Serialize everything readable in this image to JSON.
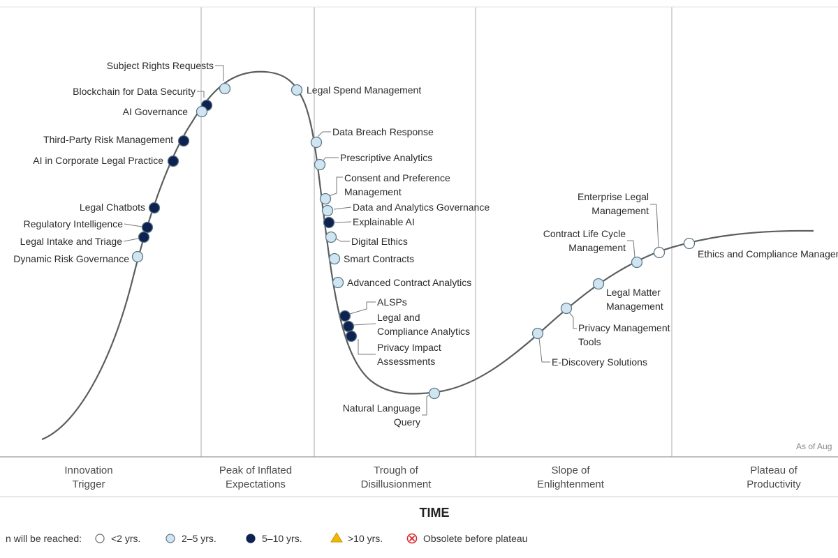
{
  "phases": [
    {
      "line1": "Innovation",
      "line2": "Trigger"
    },
    {
      "line1": "Peak of Inflated",
      "line2": "Expectations"
    },
    {
      "line1": "Trough of",
      "line2": "Disillusionment"
    },
    {
      "line1": "Slope of",
      "line2": "Enlightenment"
    },
    {
      "line1": "Plateau of",
      "line2": "Productivity"
    }
  ],
  "x_axis_title": "TIME",
  "as_of": "As of Aug",
  "legend": {
    "prefix": "n will be reached:",
    "items": [
      {
        "label": "<2 yrs.",
        "symbol": "hollow-circle"
      },
      {
        "label": "2–5 yrs.",
        "symbol": "light-blue-circle"
      },
      {
        "label": "5–10 yrs.",
        "symbol": "navy-circle"
      },
      {
        "label": ">10 yrs.",
        "symbol": "yellow-triangle"
      },
      {
        "label": "Obsolete before plateau",
        "symbol": "red-x-circle"
      }
    ]
  },
  "colors": {
    "lt2": "#ffffff",
    "y2to5": "#cfe6f2",
    "y5to10": "#0d2250",
    "gt10": "#f2b705",
    "obsolete": "#d9262c",
    "curve": "#5a5e5e",
    "divider": "#b9b9b9"
  },
  "technologies": [
    {
      "lines": [
        "Subject Rights Requests"
      ],
      "category": "2–5 yrs."
    },
    {
      "lines": [
        "Blockchain for Data Security"
      ],
      "category": "5–10 yrs."
    },
    {
      "lines": [
        "AI Governance"
      ],
      "category": "2–5 yrs."
    },
    {
      "lines": [
        "Third-Party Risk Management"
      ],
      "category": "5–10 yrs."
    },
    {
      "lines": [
        "AI in Corporate Legal Practice"
      ],
      "category": "5–10 yrs."
    },
    {
      "lines": [
        "Legal Chatbots"
      ],
      "category": "5–10 yrs."
    },
    {
      "lines": [
        "Regulatory Intelligence"
      ],
      "category": "5–10 yrs."
    },
    {
      "lines": [
        "Legal Intake and Triage"
      ],
      "category": "5–10 yrs."
    },
    {
      "lines": [
        "Dynamic Risk Governance"
      ],
      "category": "2–5 yrs."
    },
    {
      "lines": [
        "Legal Spend Management"
      ],
      "category": "2–5 yrs."
    },
    {
      "lines": [
        "Data Breach Response"
      ],
      "category": "2–5 yrs."
    },
    {
      "lines": [
        "Prescriptive Analytics"
      ],
      "category": "2–5 yrs."
    },
    {
      "lines": [
        "Consent and Preference",
        "Management"
      ],
      "category": "2–5 yrs."
    },
    {
      "lines": [
        "Data and Analytics Governance"
      ],
      "category": "2–5 yrs."
    },
    {
      "lines": [
        "Explainable AI"
      ],
      "category": "5–10 yrs."
    },
    {
      "lines": [
        "Digital Ethics"
      ],
      "category": "2–5 yrs."
    },
    {
      "lines": [
        "Smart Contracts"
      ],
      "category": "2–5 yrs."
    },
    {
      "lines": [
        "Advanced Contract Analytics"
      ],
      "category": "2–5 yrs."
    },
    {
      "lines": [
        "ALSPs"
      ],
      "category": "5–10 yrs."
    },
    {
      "lines": [
        "Legal and",
        "Compliance Analytics"
      ],
      "category": "5–10 yrs."
    },
    {
      "lines": [
        "Privacy Impact",
        "Assessments"
      ],
      "category": "5–10 yrs."
    },
    {
      "lines": [
        "Natural Language",
        "Query"
      ],
      "category": "2–5 yrs."
    },
    {
      "lines": [
        "E-Discovery Solutions"
      ],
      "category": "2–5 yrs."
    },
    {
      "lines": [
        "Privacy Management",
        "Tools"
      ],
      "category": "2–5 yrs."
    },
    {
      "lines": [
        "Legal Matter",
        "Management"
      ],
      "category": "2–5 yrs."
    },
    {
      "lines": [
        "Contract Life Cycle",
        "Management"
      ],
      "category": "2–5 yrs."
    },
    {
      "lines": [
        "Enterprise Legal",
        "Management"
      ],
      "category": "<2 yrs."
    },
    {
      "lines": [
        "Ethics and Compliance Management"
      ],
      "category": "<2 yrs."
    }
  ]
}
